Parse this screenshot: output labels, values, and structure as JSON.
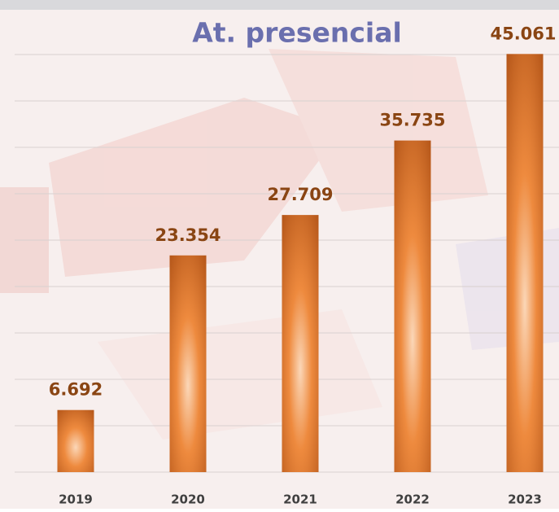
{
  "chart_data": {
    "type": "bar",
    "title": "At. presencial",
    "categories": [
      "2019",
      "2020",
      "2021",
      "2022",
      "2023"
    ],
    "values": [
      6692,
      23354,
      27709,
      35735,
      45061
    ],
    "value_labels": [
      "6.692",
      "23.354",
      "27.709",
      "35.735",
      "45.061"
    ],
    "color": "#e8813a",
    "ylim": [
      0,
      45000
    ],
    "yticks": [
      0,
      5000,
      10000,
      15000,
      20000,
      25000,
      30000,
      35000,
      40000,
      45000
    ],
    "grid": true
  }
}
